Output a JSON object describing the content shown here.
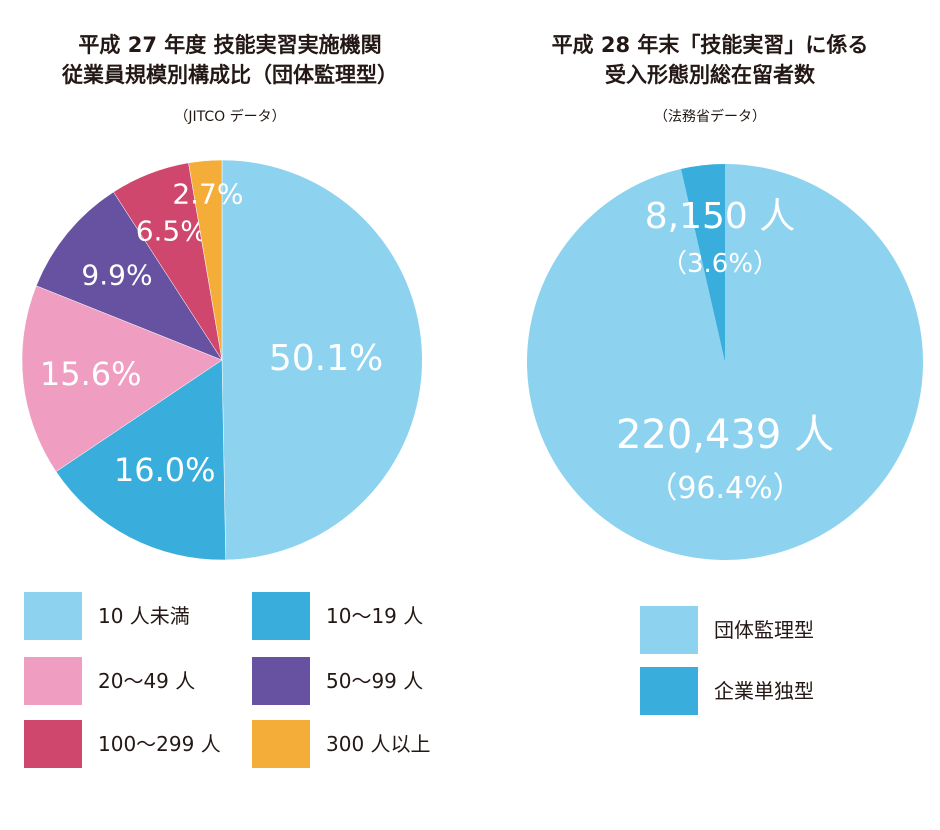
{
  "chart_data": [
    {
      "type": "pie",
      "title": "平成 27 年度 技能実習実施機関",
      "title_line2": "従業員規模別構成比（団体監理型）",
      "subtitle": "（JITCO データ）",
      "slices": [
        {
          "name": "10 人未満",
          "value": 50.1,
          "label": "50.1%",
          "color": "#8dd3f0"
        },
        {
          "name": "10〜19 人",
          "value": 16.0,
          "label": "16.0%",
          "color": "#39aedc"
        },
        {
          "name": "20〜49 人",
          "value": 15.6,
          "label": "15.6%",
          "color": "#ef9dc0"
        },
        {
          "name": "50〜99 人",
          "value": 9.9,
          "label": "9.9%",
          "color": "#6652a0"
        },
        {
          "name": "100〜299 人",
          "value": 6.5,
          "label": "6.5%",
          "color": "#d0476e"
        },
        {
          "name": "300 人以上",
          "value": 2.7,
          "label": "2.7%",
          "color": "#f3ad38"
        }
      ],
      "slice_order": [
        0,
        1,
        2,
        3,
        4,
        5
      ],
      "legend": [
        {
          "label": "10 人未満",
          "color": "#8dd3f0"
        },
        {
          "label": "10〜19 人",
          "color": "#39aedc"
        },
        {
          "label": "20〜49 人",
          "color": "#ef9dc0"
        },
        {
          "label": "50〜99 人",
          "color": "#6652a0"
        },
        {
          "label": "100〜299 人",
          "color": "#d0476e"
        },
        {
          "label": "300 人以上",
          "color": "#f3ad38"
        }
      ],
      "legend_placement": "bottom"
    },
    {
      "type": "pie",
      "title": "平成 28 年末「技能実習」に係る",
      "title_line2": "受入形態別総在留者数",
      "subtitle": "（法務省データ）",
      "slices": [
        {
          "name": "団体監理型",
          "value": 220439,
          "label": "220,439 人",
          "percent_label": "（96.4%）",
          "color": "#8dd3f0"
        },
        {
          "name": "企業単独型",
          "value": 8150,
          "label": "8,150 人",
          "percent_label": "（3.6%）",
          "color": "#39aedc"
        }
      ],
      "legend": [
        {
          "label": "団体監理型",
          "color": "#8dd3f0"
        },
        {
          "label": "企業単独型",
          "color": "#39aedc"
        }
      ],
      "legend_placement": "bottom"
    }
  ]
}
